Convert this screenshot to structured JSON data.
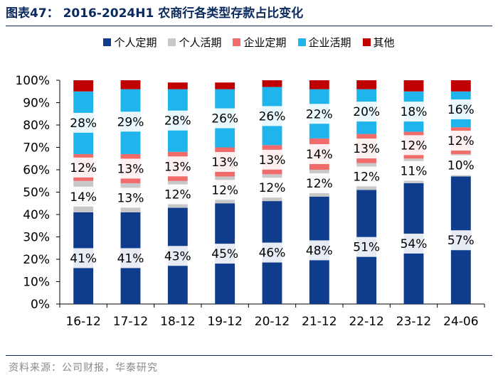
{
  "header": {
    "title": "图表47： 2016-2024H1 农商行各类型存款占比变化"
  },
  "colors": {
    "title": "#0a2a5e",
    "personal_fixed": "#0f3c8c",
    "personal_demand": "#c8c8c8",
    "corporate_fixed": "#f26b6b",
    "corporate_demand": "#1fb5ec",
    "other": "#c00000"
  },
  "chart_data": {
    "type": "bar",
    "stacked": true,
    "percent_stacked": true,
    "title": "2016-2024H1 农商行各类型存款占比变化",
    "xlabel": "",
    "ylabel": "",
    "ylim": [
      0,
      100
    ],
    "yticks": [
      "0%",
      "10%",
      "20%",
      "30%",
      "40%",
      "50%",
      "60%",
      "70%",
      "80%",
      "90%",
      "100%"
    ],
    "categories": [
      "16-12",
      "17-12",
      "18-12",
      "19-12",
      "20-12",
      "21-12",
      "22-12",
      "23-12",
      "24-06"
    ],
    "legend_position": "top",
    "grid": false,
    "series": [
      {
        "name": "个人定期",
        "color": "#0f3c8c",
        "values": [
          41,
          41,
          43,
          45,
          46,
          48,
          51,
          54,
          57
        ],
        "labels": [
          "41%",
          "41%",
          "43%",
          "45%",
          "46%",
          "48%",
          "51%",
          "54%",
          "57%"
        ]
      },
      {
        "name": "个人活期",
        "color": "#c8c8c8",
        "values": [
          14,
          13,
          12,
          12,
          12,
          12,
          12,
          11,
          10
        ],
        "labels": [
          "14%",
          "13%",
          "12%",
          "12%",
          "12%",
          "12%",
          "12%",
          "11%",
          "10%"
        ]
      },
      {
        "name": "企业定期",
        "color": "#f26b6b",
        "values": [
          12,
          13,
          13,
          13,
          13,
          14,
          13,
          12,
          12
        ],
        "labels": [
          "12%",
          "13%",
          "13%",
          "13%",
          "13%",
          "14%",
          "13%",
          "12%",
          "12%"
        ]
      },
      {
        "name": "企业活期",
        "color": "#1fb5ec",
        "values": [
          28,
          29,
          28,
          26,
          26,
          22,
          20,
          18,
          16
        ],
        "labels": [
          "28%",
          "29%",
          "28%",
          "26%",
          "26%",
          "22%",
          "20%",
          "18%",
          "16%"
        ]
      },
      {
        "name": "其他",
        "color": "#c00000",
        "values": [
          5,
          4,
          3,
          3,
          3,
          4,
          4,
          5,
          5
        ],
        "labels": null
      }
    ]
  },
  "footer": {
    "source": "资料来源：公司财报，华泰研究"
  }
}
